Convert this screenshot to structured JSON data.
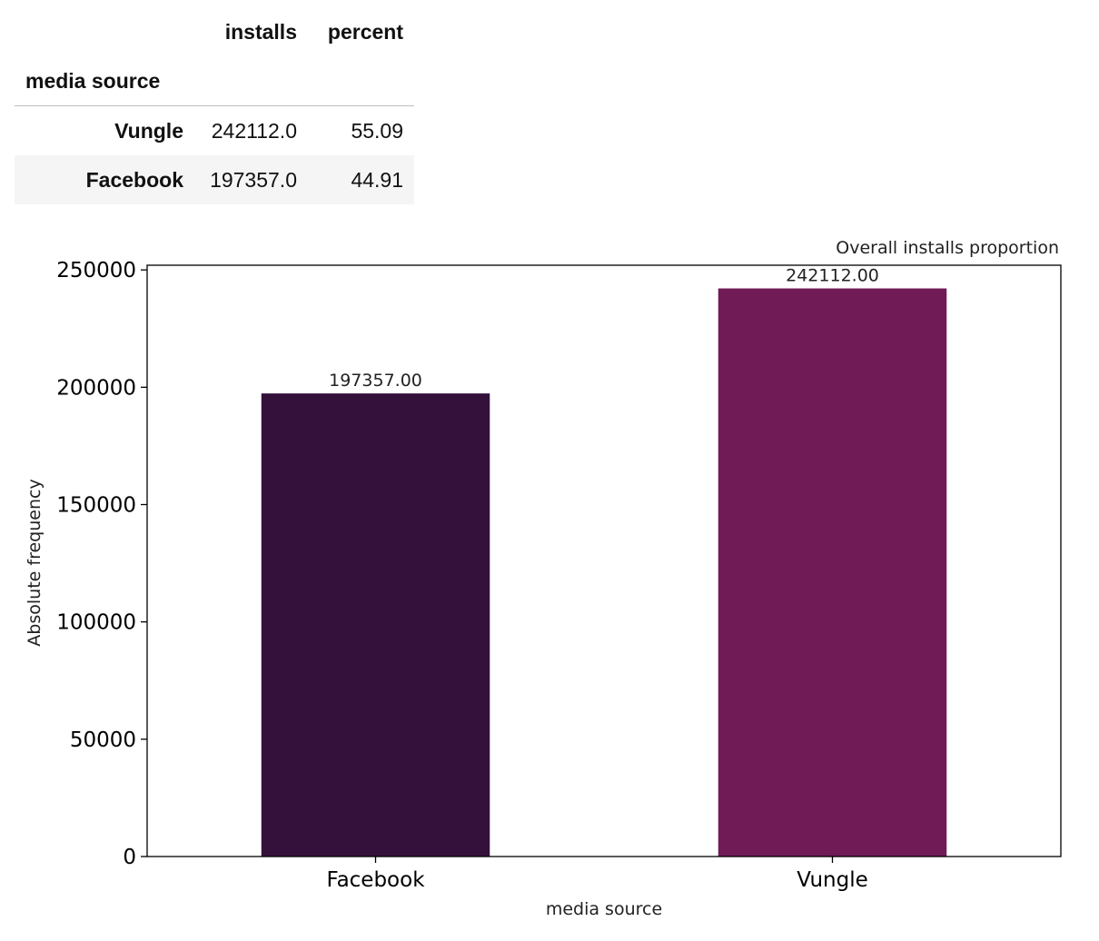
{
  "table": {
    "columns": [
      "installs",
      "percent"
    ],
    "index_name": "media source",
    "rows": [
      {
        "label": "Vungle",
        "installs": "242112.0",
        "percent": "55.09"
      },
      {
        "label": "Facebook",
        "installs": "197357.0",
        "percent": "44.91"
      }
    ]
  },
  "chart_data": {
    "type": "bar",
    "title": "Overall installs proportion",
    "title_loc": "right",
    "xlabel": "media source",
    "ylabel": "Absolute frequency",
    "categories": [
      "Facebook",
      "Vungle"
    ],
    "values": [
      197357,
      242112
    ],
    "value_labels": [
      "197357.00",
      "242112.00"
    ],
    "colors": [
      "#34113b",
      "#701b56"
    ],
    "ylim": [
      0,
      252000
    ],
    "yticks": [
      0,
      50000,
      100000,
      150000,
      200000,
      250000
    ],
    "ytick_labels": [
      "0",
      "50000",
      "100000",
      "150000",
      "200000",
      "250000"
    ],
    "grid": false,
    "legend": "none"
  }
}
